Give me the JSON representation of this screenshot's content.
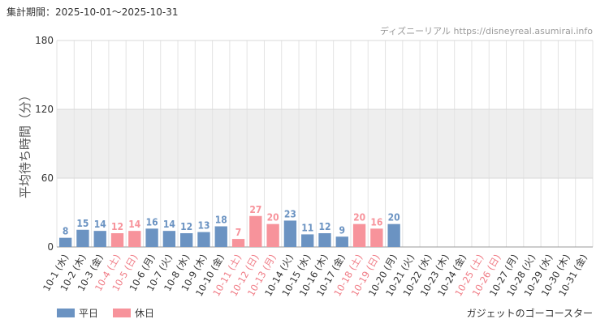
{
  "header": {
    "period_label": "集計期間：2025-10-01～2025-10-31",
    "source_label": "ディズニーリアル https://disneyreal.asumirai.info"
  },
  "footer": {
    "attraction": "ガジェットのゴーコースター"
  },
  "legend": {
    "weekday_label": "平日",
    "holiday_label": "休日"
  },
  "colors": {
    "weekday": "#6b93c2",
    "holiday": "#f7939b",
    "band": "#eeeeee",
    "grid": "#e3e3e3"
  },
  "chart_data": {
    "type": "bar",
    "title": "",
    "xlabel": "",
    "ylabel": "平均待ち時間（分）",
    "ylim": [
      0,
      180
    ],
    "yticks": [
      0,
      60,
      120,
      180
    ],
    "shaded_band": [
      60,
      120
    ],
    "grid": true,
    "legend_position": "bottom-left",
    "categories": [
      "10-1 (水)",
      "10-2 (木)",
      "10-3 (金)",
      "10-4 (土)",
      "10-5 (日)",
      "10-6 (月)",
      "10-7 (火)",
      "10-8 (水)",
      "10-9 (木)",
      "10-10 (金)",
      "10-11 (土)",
      "10-12 (日)",
      "10-13 (月)",
      "10-14 (火)",
      "10-15 (水)",
      "10-16 (木)",
      "10-17 (金)",
      "10-18 (土)",
      "10-19 (日)",
      "10-20 (月)",
      "10-21 (火)",
      "10-22 (水)",
      "10-23 (木)",
      "10-24 (金)",
      "10-25 (土)",
      "10-26 (日)",
      "10-27 (月)",
      "10-28 (火)",
      "10-29 (水)",
      "10-30 (木)",
      "10-31 (金)"
    ],
    "day_type": [
      "weekday",
      "weekday",
      "weekday",
      "holiday",
      "holiday",
      "weekday",
      "weekday",
      "weekday",
      "weekday",
      "weekday",
      "holiday",
      "holiday",
      "holiday",
      "weekday",
      "weekday",
      "weekday",
      "weekday",
      "holiday",
      "holiday",
      "weekday",
      "weekday",
      "weekday",
      "weekday",
      "weekday",
      "holiday",
      "holiday",
      "weekday",
      "weekday",
      "weekday",
      "weekday",
      "weekday"
    ],
    "series": [
      {
        "name": "平均待ち時間",
        "values": [
          8,
          15,
          14,
          12,
          14,
          16,
          14,
          12,
          13,
          18,
          7,
          27,
          20,
          23,
          11,
          12,
          9,
          20,
          16,
          20,
          null,
          null,
          null,
          null,
          null,
          null,
          null,
          null,
          null,
          null,
          null
        ]
      }
    ]
  }
}
